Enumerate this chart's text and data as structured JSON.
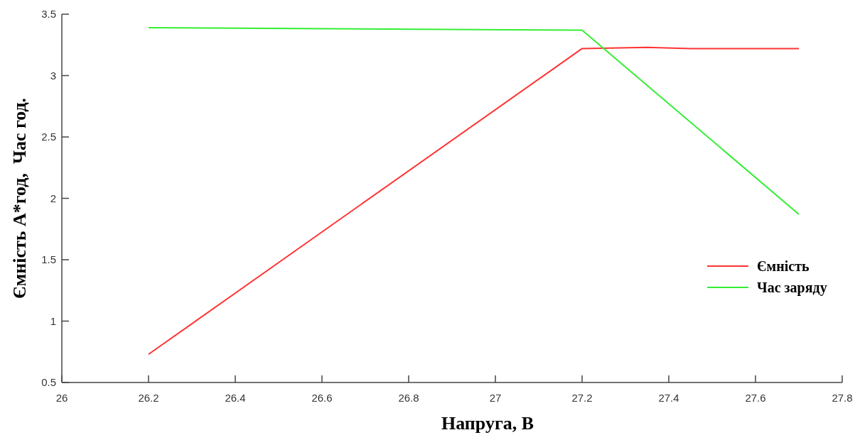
{
  "chart_data": {
    "type": "line",
    "xlabel": "Напруга, В",
    "ylabel": "Ємність А*год,  Час год.",
    "xlim": [
      26,
      27.8
    ],
    "xticks": [
      26,
      26.2,
      26.4,
      26.6,
      26.8,
      27,
      27.2,
      27.4,
      27.6,
      27.8
    ],
    "ylim": [
      0.5,
      3.5
    ],
    "yticks": [
      0.5,
      1,
      1.5,
      2,
      2.5,
      3,
      3.5
    ],
    "grid": false,
    "legend": "right",
    "marker": "none",
    "line_style": "solid",
    "series": [
      {
        "name": "Ємність",
        "color": "#ff3333",
        "x": [
          26.2,
          27.2,
          27.35,
          27.45,
          27.7
        ],
        "values": [
          0.73,
          3.22,
          3.23,
          3.22,
          3.22
        ]
      },
      {
        "name": "Час заряду",
        "color": "#33ee33",
        "x": [
          26.2,
          27.2,
          27.7
        ],
        "values": [
          3.39,
          3.37,
          1.87
        ]
      }
    ]
  }
}
